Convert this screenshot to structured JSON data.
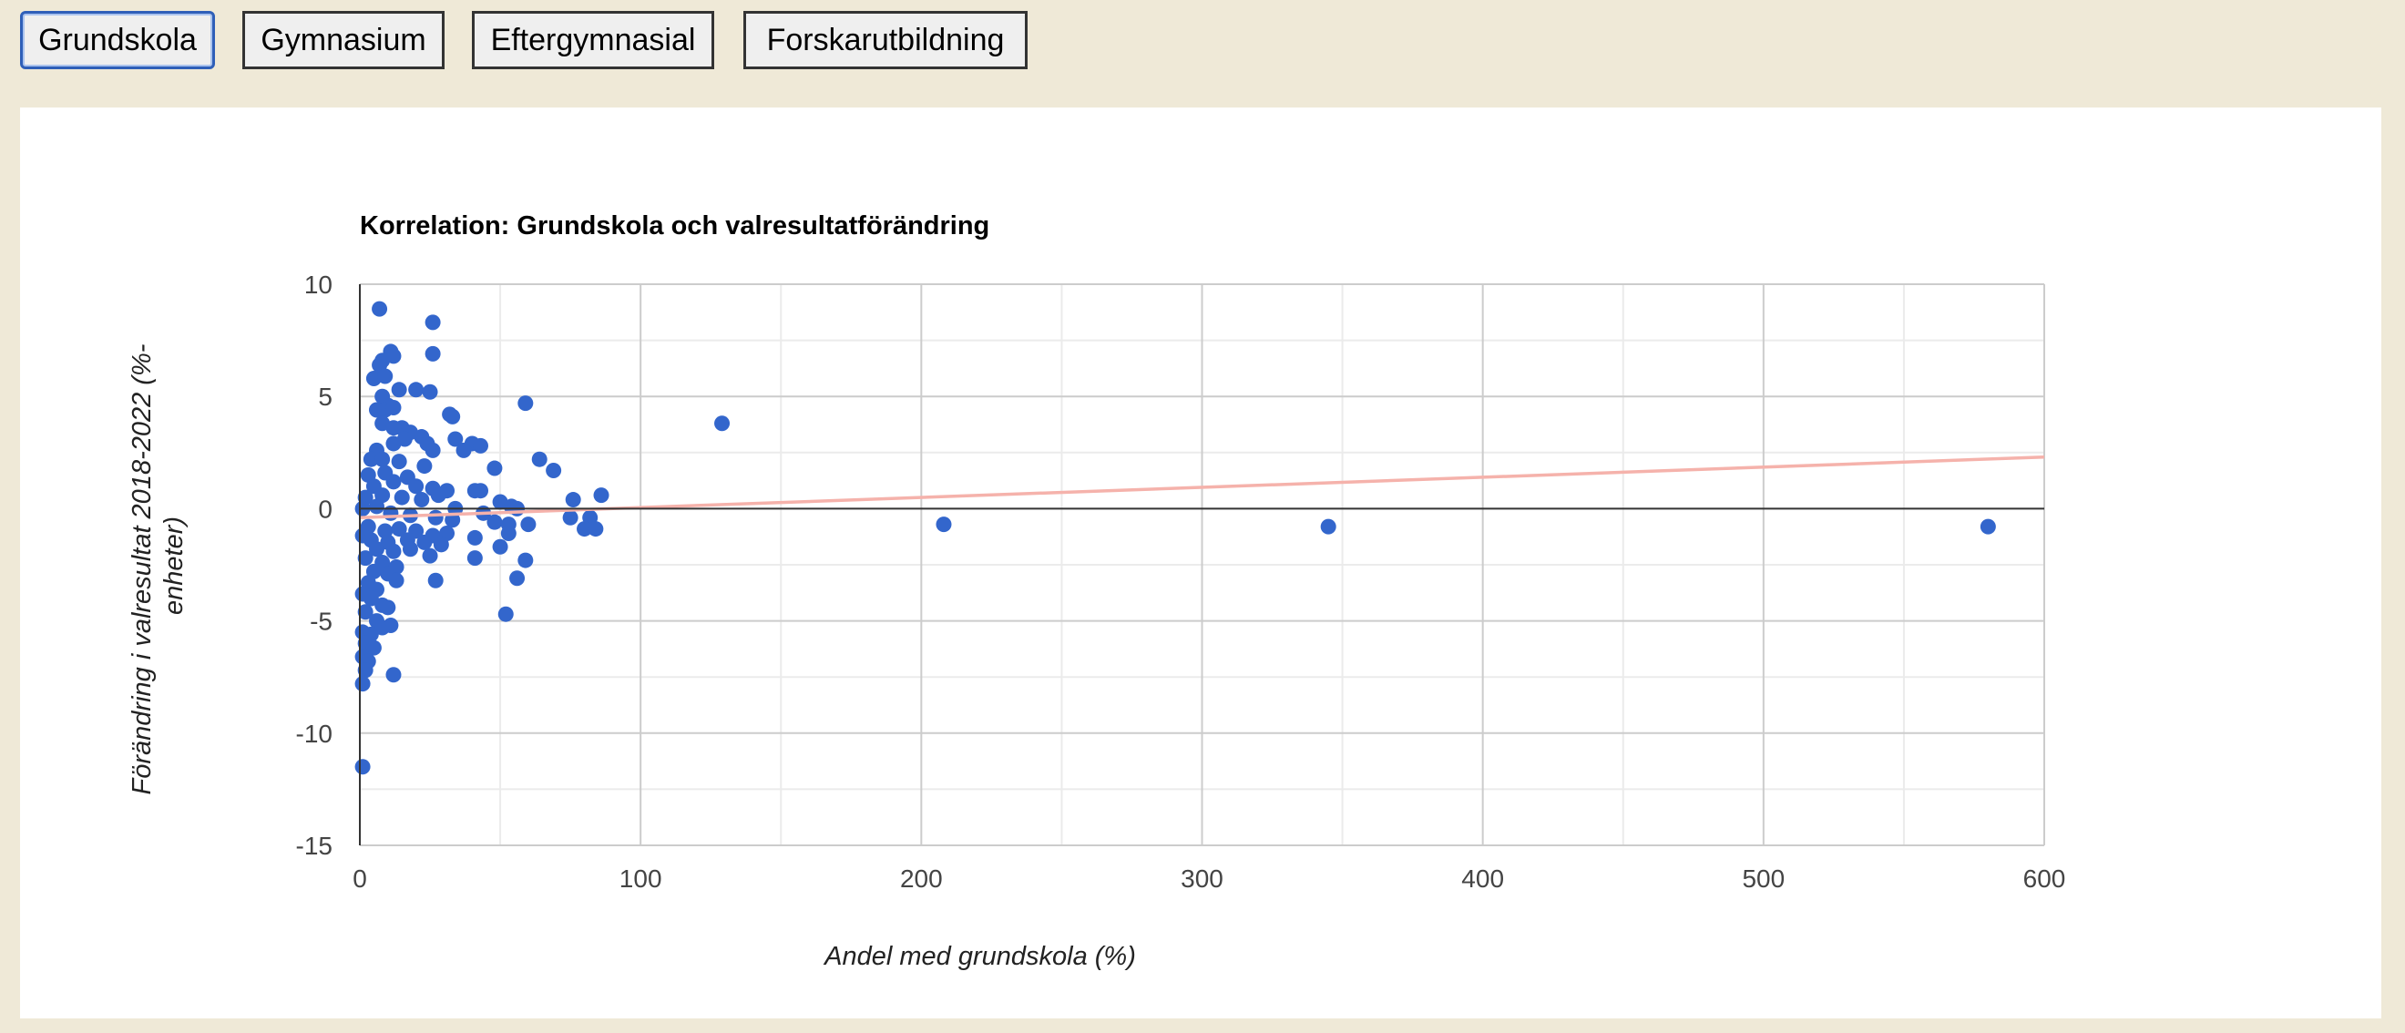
{
  "tabs": [
    "Grundskola",
    "Gymnasium",
    "Eftergymnasial",
    "Forskarutbildning"
  ],
  "active_tab": "Grundskola",
  "colors": {
    "point": "#3366cc",
    "trendline": "#f5b2ab",
    "background": "#efe9d7"
  },
  "chart_data": {
    "type": "scatter",
    "title": "Korrelation: Grundskola och valresultatförändring",
    "xlabel": "Andel med grundskola (%)",
    "ylabel_lines": [
      "Förändring i valresultat 2018-2022 (%-",
      "enheter)"
    ],
    "xlim": [
      0,
      600
    ],
    "ylim": [
      -15,
      10
    ],
    "x_ticks": [
      "0",
      "100",
      "200",
      "300",
      "400",
      "500",
      "600"
    ],
    "y_ticks": [
      "10",
      "5",
      "0",
      "-5",
      "-10",
      "-15"
    ],
    "grid": true,
    "trendline": {
      "x": [
        0,
        600
      ],
      "y": [
        -0.4,
        2.3
      ]
    },
    "series": [
      {
        "points": [
          [
            7,
            8.9
          ],
          [
            26,
            8.3
          ],
          [
            11,
            7.0
          ],
          [
            26,
            6.9
          ],
          [
            12,
            6.8
          ],
          [
            8,
            6.6
          ],
          [
            7,
            6.4
          ],
          [
            5,
            5.8
          ],
          [
            9,
            5.9
          ],
          [
            14,
            5.3
          ],
          [
            20,
            5.3
          ],
          [
            25,
            5.2
          ],
          [
            8,
            5.0
          ],
          [
            59,
            4.7
          ],
          [
            10,
            4.6
          ],
          [
            6,
            4.4
          ],
          [
            9,
            4.4
          ],
          [
            12,
            4.5
          ],
          [
            32,
            4.2
          ],
          [
            33,
            4.1
          ],
          [
            8,
            3.8
          ],
          [
            15,
            3.6
          ],
          [
            12,
            3.6
          ],
          [
            129,
            3.8
          ],
          [
            18,
            3.4
          ],
          [
            22,
            3.2
          ],
          [
            16,
            3.1
          ],
          [
            34,
            3.1
          ],
          [
            24,
            2.9
          ],
          [
            40,
            2.9
          ],
          [
            43,
            2.8
          ],
          [
            26,
            2.6
          ],
          [
            37,
            2.6
          ],
          [
            12,
            2.9
          ],
          [
            6,
            2.6
          ],
          [
            4,
            2.2
          ],
          [
            8,
            2.2
          ],
          [
            14,
            2.1
          ],
          [
            23,
            1.9
          ],
          [
            64,
            2.2
          ],
          [
            69,
            1.7
          ],
          [
            48,
            1.8
          ],
          [
            3,
            1.5
          ],
          [
            9,
            1.6
          ],
          [
            17,
            1.4
          ],
          [
            5,
            1.0
          ],
          [
            12,
            1.2
          ],
          [
            20,
            1.0
          ],
          [
            26,
            0.9
          ],
          [
            31,
            0.8
          ],
          [
            41,
            0.8
          ],
          [
            43,
            0.8
          ],
          [
            86,
            0.6
          ],
          [
            76,
            0.4
          ],
          [
            2,
            0.5
          ],
          [
            8,
            0.6
          ],
          [
            15,
            0.5
          ],
          [
            22,
            0.4
          ],
          [
            28,
            0.6
          ],
          [
            50,
            0.3
          ],
          [
            54,
            0.1
          ],
          [
            34,
            0.0
          ],
          [
            44,
            -0.2
          ],
          [
            56,
            0.0
          ],
          [
            1,
            0.0
          ],
          [
            6,
            0.1
          ],
          [
            11,
            -0.2
          ],
          [
            18,
            -0.3
          ],
          [
            27,
            -0.4
          ],
          [
            33,
            -0.5
          ],
          [
            48,
            -0.6
          ],
          [
            53,
            -0.7
          ],
          [
            60,
            -0.7
          ],
          [
            75,
            -0.4
          ],
          [
            82,
            -0.4
          ],
          [
            80,
            -0.9
          ],
          [
            84,
            -0.9
          ],
          [
            208,
            -0.7
          ],
          [
            345,
            -0.8
          ],
          [
            580,
            -0.8
          ],
          [
            3,
            -0.8
          ],
          [
            9,
            -1.0
          ],
          [
            14,
            -0.9
          ],
          [
            20,
            -1.0
          ],
          [
            26,
            -1.2
          ],
          [
            31,
            -1.1
          ],
          [
            41,
            -1.3
          ],
          [
            53,
            -1.1
          ],
          [
            4,
            -1.4
          ],
          [
            10,
            -1.5
          ],
          [
            17,
            -1.4
          ],
          [
            23,
            -1.5
          ],
          [
            29,
            -1.6
          ],
          [
            50,
            -1.7
          ],
          [
            1,
            -1.2
          ],
          [
            6,
            -1.8
          ],
          [
            12,
            -1.9
          ],
          [
            18,
            -1.8
          ],
          [
            25,
            -2.1
          ],
          [
            41,
            -2.2
          ],
          [
            59,
            -2.3
          ],
          [
            2,
            -2.2
          ],
          [
            8,
            -2.4
          ],
          [
            13,
            -2.6
          ],
          [
            5,
            -2.8
          ],
          [
            10,
            -2.9
          ],
          [
            13,
            -3.2
          ],
          [
            27,
            -3.2
          ],
          [
            56,
            -3.1
          ],
          [
            3,
            -3.3
          ],
          [
            6,
            -3.6
          ],
          [
            1,
            -3.8
          ],
          [
            4,
            -4.0
          ],
          [
            8,
            -4.3
          ],
          [
            10,
            -4.4
          ],
          [
            2,
            -4.6
          ],
          [
            52,
            -4.7
          ],
          [
            6,
            -5.0
          ],
          [
            11,
            -5.2
          ],
          [
            1,
            -5.5
          ],
          [
            4,
            -5.6
          ],
          [
            8,
            -5.3
          ],
          [
            2,
            -6.0
          ],
          [
            5,
            -6.2
          ],
          [
            1,
            -6.6
          ],
          [
            3,
            -6.8
          ],
          [
            2,
            -7.2
          ],
          [
            12,
            -7.4
          ],
          [
            1,
            -7.8
          ],
          [
            1,
            -11.5
          ]
        ]
      }
    ]
  }
}
